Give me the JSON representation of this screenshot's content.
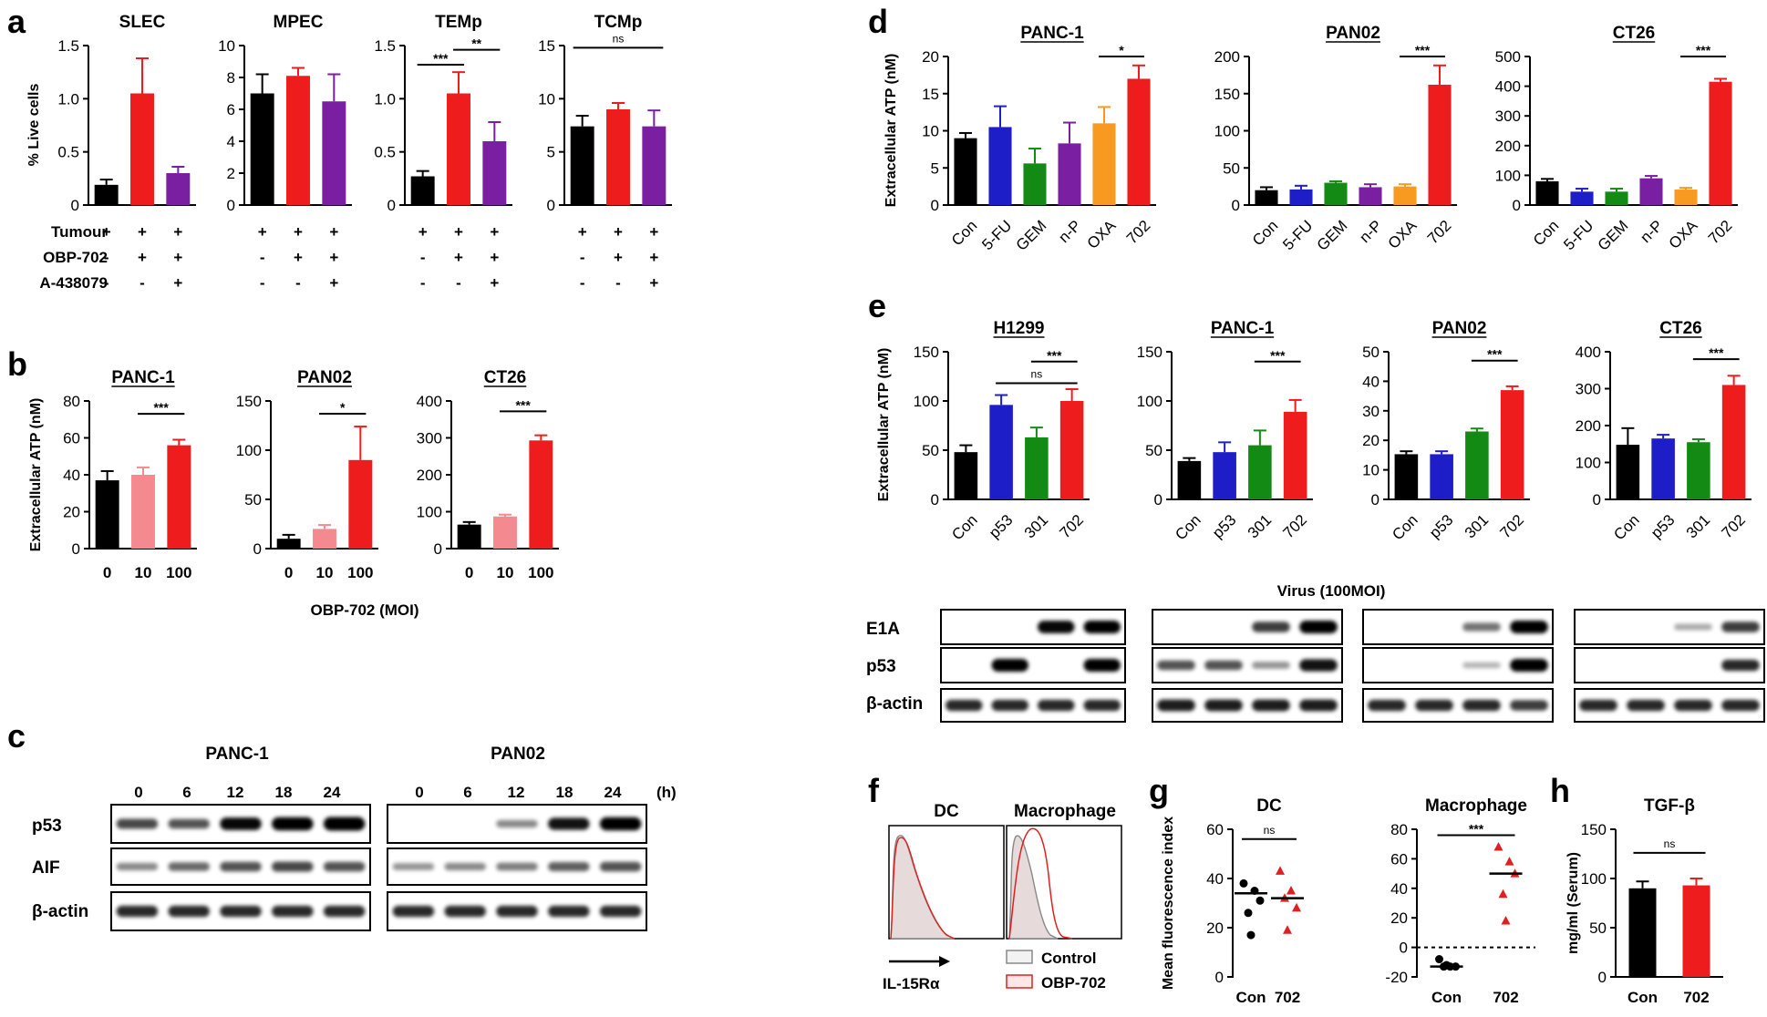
{
  "figure": {
    "panel_labels": [
      "a",
      "b",
      "c",
      "d",
      "e",
      "f",
      "g",
      "h"
    ],
    "xlabel_b": "OBP-702 (MOI)",
    "virus_label": "Virus (100MOI)",
    "hours_unit": "(h)"
  },
  "colors": {
    "black": "#000000",
    "red": "#ee1c1c",
    "purple": "#7b1fa2",
    "pink": "#f48a8f",
    "blue": "#1e1ec8",
    "green": "#138a13",
    "orange": "#f79a1f"
  },
  "chart_data": [
    {
      "id": "a1",
      "type": "bar",
      "title": "SLEC",
      "ylabel": "% Live cells",
      "ylim": [
        0,
        1.5
      ],
      "yticks": [
        "0",
        "0.5",
        "1.0",
        "1.5"
      ],
      "categories": [
        "Con",
        "OBP-702",
        "OBP-702+A-438079"
      ],
      "values": [
        0.19,
        1.05,
        0.3
      ],
      "errors": [
        0.05,
        0.33,
        0.06
      ],
      "colors": [
        "black",
        "red",
        "purple"
      ],
      "sig": []
    },
    {
      "id": "a2",
      "type": "bar",
      "title": "MPEC",
      "ylim": [
        0,
        10
      ],
      "yticks": [
        "0",
        "2",
        "4",
        "6",
        "8",
        "10"
      ],
      "categories": [
        "Con",
        "OBP-702",
        "OBP-702+A-438079"
      ],
      "values": [
        7.0,
        8.1,
        6.5
      ],
      "errors": [
        1.2,
        0.5,
        1.7
      ],
      "colors": [
        "black",
        "red",
        "purple"
      ],
      "sig": []
    },
    {
      "id": "a3",
      "type": "bar",
      "title": "TEMp",
      "ylim": [
        0,
        1.5
      ],
      "yticks": [
        "0",
        "0.5",
        "1.0",
        "1.5"
      ],
      "categories": [
        "Con",
        "OBP-702",
        "OBP-702+A-438079"
      ],
      "values": [
        0.27,
        1.05,
        0.6
      ],
      "errors": [
        0.05,
        0.2,
        0.18
      ],
      "colors": [
        "black",
        "red",
        "purple"
      ],
      "sig": [
        {
          "from": 0,
          "to": 1,
          "label": "***",
          "at": 1.32
        },
        {
          "from": 1,
          "to": 2,
          "label": "**",
          "at": 1.46
        }
      ]
    },
    {
      "id": "a4",
      "type": "bar",
      "title": "TCMp",
      "ylim": [
        0,
        15
      ],
      "yticks": [
        "0",
        "5",
        "10",
        "15"
      ],
      "categories": [
        "Con",
        "OBP-702",
        "OBP-702+A-438079"
      ],
      "values": [
        7.4,
        9.0,
        7.4
      ],
      "errors": [
        1.0,
        0.6,
        1.5
      ],
      "colors": [
        "black",
        "red",
        "purple"
      ],
      "sig": [
        {
          "from": 0,
          "to": 2,
          "label": "ns",
          "at": 14.8
        }
      ]
    },
    {
      "id": "b1",
      "type": "bar",
      "title": "PANC-1",
      "ylabel": "Extracellular ATP (nM)",
      "ylim": [
        0,
        80
      ],
      "yticks": [
        "0",
        "20",
        "40",
        "60",
        "80"
      ],
      "categories": [
        "0",
        "10",
        "100"
      ],
      "values": [
        37,
        40,
        56
      ],
      "errors": [
        5,
        4,
        3
      ],
      "colors": [
        "black",
        "pink",
        "red"
      ],
      "sig": [
        {
          "from": 1,
          "to": 2,
          "label": "***",
          "at": 73
        }
      ]
    },
    {
      "id": "b2",
      "type": "bar",
      "title": "PAN02",
      "ylim": [
        0,
        150
      ],
      "yticks": [
        "0",
        "50",
        "100",
        "150"
      ],
      "categories": [
        "0",
        "10",
        "100"
      ],
      "values": [
        10,
        20,
        90
      ],
      "errors": [
        4,
        4,
        34
      ],
      "colors": [
        "black",
        "pink",
        "red"
      ],
      "sig": [
        {
          "from": 1,
          "to": 2,
          "label": "*",
          "at": 137
        }
      ]
    },
    {
      "id": "b3",
      "type": "bar",
      "title": "CT26",
      "ylim": [
        0,
        400
      ],
      "yticks": [
        "0",
        "100",
        "200",
        "300",
        "400"
      ],
      "categories": [
        "0",
        "10",
        "100"
      ],
      "values": [
        65,
        87,
        293
      ],
      "errors": [
        7,
        5,
        14
      ],
      "colors": [
        "black",
        "pink",
        "red"
      ],
      "sig": [
        {
          "from": 1,
          "to": 2,
          "label": "***",
          "at": 372
        }
      ]
    },
    {
      "id": "d1",
      "type": "bar",
      "title": "PANC-1",
      "ylabel": "Extracellular ATP (nM)",
      "ylim": [
        0,
        20
      ],
      "yticks": [
        "0",
        "5",
        "10",
        "15",
        "20"
      ],
      "categories": [
        "Con",
        "5-FU",
        "GEM",
        "n-P",
        "OXA",
        "702"
      ],
      "values": [
        9.0,
        10.5,
        5.6,
        8.3,
        11.0,
        17.0
      ],
      "errors": [
        0.7,
        2.8,
        2.0,
        2.8,
        2.2,
        1.8
      ],
      "colors": [
        "black",
        "blue",
        "green",
        "purple",
        "orange",
        "red"
      ],
      "sig": [
        {
          "from": 4,
          "to": 5,
          "label": "*",
          "at": 20.0
        }
      ]
    },
    {
      "id": "d2",
      "type": "bar",
      "title": "PAN02",
      "ylim": [
        0,
        200
      ],
      "yticks": [
        "0",
        "50",
        "100",
        "150",
        "200"
      ],
      "categories": [
        "Con",
        "5-FU",
        "GEM",
        "n-P",
        "OXA",
        "702"
      ],
      "values": [
        20,
        21,
        30,
        24,
        25,
        162
      ],
      "errors": [
        4,
        5,
        2,
        4,
        3,
        26
      ],
      "colors": [
        "black",
        "blue",
        "green",
        "purple",
        "orange",
        "red"
      ],
      "sig": [
        {
          "from": 4,
          "to": 5,
          "label": "***",
          "at": 200
        }
      ]
    },
    {
      "id": "d3",
      "type": "bar",
      "title": "CT26",
      "ylim": [
        0,
        500
      ],
      "yticks": [
        "0",
        "100",
        "200",
        "300",
        "400",
        "500"
      ],
      "categories": [
        "Con",
        "5-FU",
        "GEM",
        "n-P",
        "OXA",
        "702"
      ],
      "values": [
        80,
        45,
        45,
        90,
        52,
        415
      ],
      "errors": [
        8,
        10,
        10,
        8,
        6,
        10
      ],
      "colors": [
        "black",
        "blue",
        "green",
        "purple",
        "orange",
        "red"
      ],
      "sig": [
        {
          "from": 4,
          "to": 5,
          "label": "***",
          "at": 500
        }
      ]
    },
    {
      "id": "e1",
      "type": "bar",
      "title": "H1299",
      "ylabel": "Extracellular ATP (nM)",
      "ylim": [
        0,
        150
      ],
      "yticks": [
        "0",
        "50",
        "100",
        "150"
      ],
      "categories": [
        "Con",
        "p53",
        "301",
        "702"
      ],
      "values": [
        48,
        96,
        63,
        100
      ],
      "errors": [
        7,
        10,
        10,
        12
      ],
      "colors": [
        "black",
        "blue",
        "green",
        "red"
      ],
      "sig": [
        {
          "from": 2,
          "to": 3,
          "label": "***",
          "at": 140
        },
        {
          "from": 1,
          "to": 3,
          "label": "ns",
          "at": 118
        }
      ]
    },
    {
      "id": "e2",
      "type": "bar",
      "title": "PANC-1",
      "ylim": [
        0,
        150
      ],
      "yticks": [
        "0",
        "50",
        "100",
        "150"
      ],
      "categories": [
        "Con",
        "p53",
        "301",
        "702"
      ],
      "values": [
        39,
        48,
        55,
        89
      ],
      "errors": [
        3,
        10,
        15,
        12
      ],
      "colors": [
        "black",
        "blue",
        "green",
        "red"
      ],
      "sig": [
        {
          "from": 2,
          "to": 3,
          "label": "***",
          "at": 140
        }
      ]
    },
    {
      "id": "e3",
      "type": "bar",
      "title": "PAN02",
      "ylim": [
        0,
        50
      ],
      "yticks": [
        "0",
        "10",
        "20",
        "30",
        "40",
        "50"
      ],
      "categories": [
        "Con",
        "p53",
        "301",
        "702"
      ],
      "values": [
        15.3,
        15.3,
        23,
        37
      ],
      "errors": [
        1,
        1,
        1,
        1.3
      ],
      "colors": [
        "black",
        "blue",
        "green",
        "red"
      ],
      "sig": [
        {
          "from": 2,
          "to": 3,
          "label": "***",
          "at": 47
        }
      ]
    },
    {
      "id": "e4",
      "type": "bar",
      "title": "CT26",
      "ylim": [
        0,
        400
      ],
      "yticks": [
        "0",
        "100",
        "200",
        "300",
        "400"
      ],
      "categories": [
        "Con",
        "p53",
        "301",
        "702"
      ],
      "values": [
        148,
        165,
        155,
        310
      ],
      "errors": [
        45,
        10,
        8,
        25
      ],
      "colors": [
        "black",
        "blue",
        "green",
        "red"
      ],
      "sig": [
        {
          "from": 2,
          "to": 3,
          "label": "***",
          "at": 380
        }
      ]
    },
    {
      "id": "g1",
      "type": "scatter",
      "title": "DC",
      "ylabel": "Mean fluorescence index",
      "ylim": [
        0,
        60
      ],
      "yticks": [
        "0",
        "20",
        "40",
        "60"
      ],
      "categories": [
        "Con",
        "702"
      ],
      "points": [
        [
          38,
          35,
          31,
          26,
          17
        ],
        [
          43,
          35,
          28,
          32,
          19
        ]
      ],
      "means": [
        34,
        32
      ],
      "sig": [
        {
          "from": 0,
          "to": 1,
          "label": "ns",
          "at": 56
        }
      ]
    },
    {
      "id": "g2",
      "type": "scatter",
      "title": "Macrophage",
      "ylim": [
        -20,
        80
      ],
      "yticks": [
        "-20",
        "0",
        "20",
        "40",
        "60",
        "80"
      ],
      "categories": [
        "Con",
        "702"
      ],
      "points": [
        [
          -8,
          -13,
          -13,
          -13,
          -12
        ],
        [
          68,
          58,
          50,
          36,
          18
        ]
      ],
      "means": [
        -13,
        50
      ],
      "sig": [
        {
          "from": 0,
          "to": 1,
          "label": "***",
          "at": 76
        }
      ]
    },
    {
      "id": "h1",
      "type": "bar",
      "title": "TGF-β",
      "ylabel": "mg/ml (Serum)",
      "ylim": [
        0,
        150
      ],
      "yticks": [
        "0",
        "50",
        "100",
        "150"
      ],
      "categories": [
        "Con",
        "702"
      ],
      "values": [
        90,
        93
      ],
      "errors": [
        7,
        7
      ],
      "colors": [
        "black",
        "red"
      ],
      "sig": [
        {
          "from": 0,
          "to": 1,
          "label": "ns",
          "at": 126
        }
      ]
    }
  ],
  "panel_a": {
    "row_labels": [
      "Tumour",
      "OBP-702",
      "A-438079"
    ],
    "signs": [
      [
        "+",
        "+",
        "+"
      ],
      [
        "-",
        "+",
        "+"
      ],
      [
        "-",
        "-",
        "+"
      ]
    ]
  },
  "blots_c": {
    "cell_lines": [
      "PANC-1",
      "PAN02"
    ],
    "timepoints": [
      "0",
      "6",
      "12",
      "18",
      "24"
    ],
    "rows": [
      "p53",
      "AIF",
      "β-actin"
    ]
  },
  "blots_e": {
    "rows": [
      "E1A",
      "p53",
      "β-actin"
    ]
  },
  "panel_f": {
    "titles": [
      "DC",
      "Macrophage"
    ],
    "axis_label": "IL-15Rα",
    "legend": [
      "Control",
      "OBP-702"
    ]
  }
}
